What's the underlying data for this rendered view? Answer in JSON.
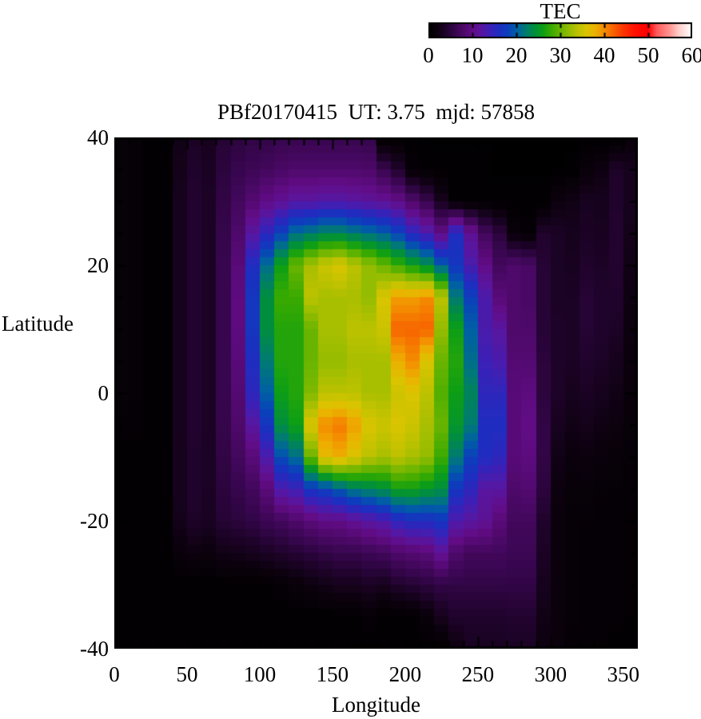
{
  "page": {
    "background": "#ffffff",
    "text_color": "#000000"
  },
  "colorbar": {
    "title": "TEC",
    "min": 0,
    "max": 60,
    "tick_values": [
      0,
      10,
      20,
      30,
      40,
      50,
      60
    ],
    "tick_labels": [
      "0",
      "10",
      "20",
      "30",
      "40",
      "50",
      "60"
    ]
  },
  "axes": {
    "xlabel": "Longitude",
    "ylabel": "Latitude",
    "x_range": [
      0,
      360
    ],
    "y_range": [
      -40,
      40
    ],
    "x_tick_values": [
      0,
      50,
      100,
      150,
      200,
      250,
      300,
      350
    ],
    "x_tick_labels": [
      "0",
      "50",
      "100",
      "150",
      "200",
      "250",
      "300",
      "350"
    ],
    "y_tick_values": [
      40,
      20,
      0,
      -20,
      -40
    ],
    "y_tick_labels": [
      "40",
      "20",
      "0",
      "-20",
      "-40"
    ],
    "x_minor_step": 10,
    "y_minor_step": 5
  },
  "chart_data": {
    "type": "heatmap",
    "title": "PBf20170415  UT: 3.75  mjd: 57858",
    "xlabel": "Longitude",
    "ylabel": "Latitude",
    "colorbar_label": "TEC",
    "value_range": [
      0,
      60
    ],
    "x_range": [
      0,
      360
    ],
    "y_range": [
      -40,
      40
    ],
    "lon_bin_deg": 10,
    "lat_rows": [
      40,
      35,
      30,
      25,
      20,
      15,
      10,
      5,
      0,
      -5,
      -10,
      -15,
      -20,
      -25,
      -30,
      -35,
      -40
    ],
    "lon_cols": [
      0,
      10,
      20,
      30,
      40,
      50,
      60,
      70,
      80,
      90,
      100,
      110,
      120,
      130,
      140,
      150,
      160,
      170,
      180,
      190,
      200,
      210,
      220,
      230,
      240,
      250,
      260,
      270,
      280,
      290,
      300,
      310,
      320,
      330,
      340,
      350
    ],
    "grid_cols": [
      [
        1.2,
        1.2,
        1.2,
        1.2,
        1.2,
        1.2,
        1.2,
        1.2,
        1.2,
        0.8,
        0.4,
        0.4,
        0.4,
        0.4,
        0.4,
        0.4,
        0.4
      ],
      [
        1.0,
        1.0,
        1.0,
        1.0,
        1.0,
        1.0,
        1.0,
        1.0,
        1.0,
        0.7,
        0.4,
        0.4,
        0.4,
        0.4,
        0.4,
        0.4,
        0.4
      ],
      [
        0.5,
        0.5,
        0.5,
        0.5,
        0.5,
        0.5,
        0.5,
        0.5,
        0.5,
        0.5,
        0.4,
        0.4,
        0.4,
        0.4,
        0.4,
        0.4,
        0.4
      ],
      [
        0.5,
        0.5,
        0.5,
        0.5,
        0.5,
        0.5,
        0.5,
        0.5,
        0.5,
        0.5,
        0.4,
        0.4,
        0.4,
        0.4,
        0.4,
        0.4,
        0.4
      ],
      [
        2.5,
        2.8,
        3.0,
        3.0,
        3.0,
        3.0,
        3.0,
        3.0,
        3.0,
        3.0,
        3.0,
        3.0,
        2.8,
        1.5,
        0.3,
        0.3,
        0.3
      ],
      [
        3.5,
        4.0,
        4.2,
        4.2,
        4.2,
        4.2,
        4.2,
        4.2,
        4.2,
        4.2,
        4.0,
        4.0,
        3.8,
        2.0,
        0.3,
        0.3,
        0.3
      ],
      [
        3.0,
        3.4,
        3.6,
        3.6,
        3.6,
        3.6,
        3.6,
        3.6,
        3.6,
        3.6,
        3.5,
        3.5,
        3.3,
        1.8,
        0.3,
        0.3,
        0.3
      ],
      [
        4.5,
        5.0,
        5.5,
        5.8,
        6.0,
        6.0,
        6.0,
        6.0,
        6.0,
        5.8,
        5.5,
        5.0,
        4.5,
        2.5,
        0.3,
        0.3,
        0.3
      ],
      [
        5.0,
        6.0,
        7.0,
        8.0,
        9.0,
        9.5,
        9.5,
        9.0,
        8.5,
        8.0,
        7.0,
        6.0,
        5.0,
        2.8,
        0.3,
        0.3,
        0.3
      ],
      [
        5.5,
        6.5,
        8.5,
        12,
        16,
        17,
        17,
        16,
        15,
        12,
        9.0,
        7.0,
        5.5,
        3.0,
        0.3,
        0.3,
        0.3
      ],
      [
        5.5,
        7.0,
        10,
        15,
        21,
        24,
        24,
        22,
        20,
        17,
        13,
        9.0,
        6.5,
        3.5,
        0.5,
        0.3,
        0.3
      ],
      [
        6.0,
        7.5,
        11,
        18,
        26,
        28,
        27,
        27,
        26,
        24,
        19,
        13,
        7.0,
        4.0,
        1.0,
        0.3,
        0.3
      ],
      [
        6.0,
        8.0,
        12,
        21,
        30,
        28,
        27,
        27,
        27,
        26,
        21,
        14,
        8.0,
        4.5,
        1.5,
        0.3,
        0.3
      ],
      [
        6.0,
        8.0,
        12,
        22,
        33,
        34,
        30,
        30,
        31,
        36,
        30,
        17,
        9.0,
        5.0,
        2.0,
        0.3,
        0.3
      ],
      [
        6.0,
        8.0,
        12.5,
        23,
        35,
        33,
        33,
        32,
        34,
        40,
        37,
        18,
        10,
        5.5,
        2.5,
        0.3,
        0.3
      ],
      [
        6.0,
        8.0,
        12.5,
        23,
        36,
        33,
        33,
        32,
        34,
        41,
        38,
        20,
        10,
        6.0,
        3.0,
        0.5,
        0.3
      ],
      [
        6.0,
        8.0,
        12,
        22,
        34,
        33,
        34,
        33,
        34,
        39,
        36,
        22,
        11,
        6.0,
        3.0,
        0.5,
        0.3
      ],
      [
        5.8,
        7.8,
        11.5,
        21,
        32,
        32,
        34,
        33,
        33,
        36,
        34,
        23,
        12,
        6.5,
        3.5,
        1.0,
        0.3
      ],
      [
        0.2,
        6.0,
        11,
        20,
        30,
        36,
        35,
        33,
        33,
        35,
        33,
        24,
        13,
        7.0,
        3.0,
        0.3,
        0.3
      ],
      [
        0.2,
        4.0,
        10,
        18,
        28,
        39,
        42,
        38,
        35,
        36,
        34,
        26,
        15,
        8.0,
        4.0,
        0.3,
        0.3
      ],
      [
        0.2,
        1.0,
        8.0,
        15,
        26,
        39,
        42,
        40,
        36,
        35,
        33,
        26,
        16,
        8.5,
        4.5,
        0.5,
        0.3
      ],
      [
        0.2,
        0.4,
        6.0,
        13,
        24,
        40,
        42,
        36,
        34,
        33,
        32,
        25,
        16,
        9.0,
        5.0,
        1.5,
        0.3
      ],
      [
        0.2,
        0.3,
        3.0,
        10,
        20,
        34,
        32,
        30,
        29,
        30,
        28,
        24,
        17,
        11,
        5.5,
        3.0,
        0.3
      ],
      [
        0.2,
        0.3,
        0.5,
        16,
        17,
        22,
        26,
        27,
        26,
        25,
        22,
        17,
        13,
        8.0,
        5.5,
        4.0,
        2.0
      ],
      [
        0.2,
        0.3,
        0.4,
        11,
        13,
        18,
        20,
        21,
        23,
        22,
        18,
        15,
        12,
        7.0,
        5.5,
        4.0,
        3.2
      ],
      [
        0.2,
        0.3,
        0.4,
        7.0,
        10,
        13,
        13,
        14,
        15,
        16,
        16,
        12,
        11,
        7.0,
        5.5,
        4.0,
        3.2
      ],
      [
        0.2,
        0.2,
        0.3,
        5.0,
        7.0,
        9.0,
        12,
        13,
        15,
        16,
        15,
        12,
        9.0,
        7.0,
        5.5,
        4.0,
        3.2
      ],
      [
        0.2,
        0.2,
        0.3,
        1.5,
        8.0,
        8.0,
        8.0,
        8.5,
        9.0,
        9.0,
        9.0,
        8.0,
        7.0,
        6.5,
        5.5,
        4.2,
        3.4
      ],
      [
        0.2,
        0.2,
        0.3,
        1.0,
        7.5,
        7.5,
        8.0,
        8.5,
        9.5,
        10,
        9.5,
        8.5,
        7.0,
        6.5,
        5.5,
        4.2,
        3.4
      ],
      [
        0.1,
        0.2,
        0.3,
        4.0,
        4.5,
        4.5,
        4.5,
        5.0,
        5.0,
        5.5,
        5.5,
        5.0,
        4.0,
        3.5,
        3.0,
        2.5,
        2.0
      ],
      [
        0.1,
        0.2,
        2.0,
        3.5,
        3.5,
        3.5,
        3.8,
        3.8,
        3.8,
        3.2,
        2.5,
        2.0,
        1.8,
        1.8,
        1.8,
        1.8,
        1.5
      ],
      [
        0.1,
        0.3,
        2.5,
        3.0,
        3.2,
        3.5,
        3.5,
        3.5,
        3.0,
        2.5,
        1.8,
        1.2,
        1.0,
        1.0,
        1.0,
        1.0,
        0.8
      ],
      [
        0.1,
        1.5,
        3.2,
        3.5,
        4.0,
        4.5,
        4.5,
        4.0,
        3.5,
        2.8,
        2.0,
        1.2,
        0.9,
        0.9,
        0.9,
        0.9,
        0.7
      ],
      [
        0.1,
        2.2,
        3.0,
        3.2,
        3.6,
        4.0,
        4.0,
        3.6,
        3.0,
        2.4,
        1.6,
        1.0,
        0.8,
        0.8,
        0.8,
        0.8,
        0.6
      ],
      [
        0.2,
        3.8,
        4.0,
        4.2,
        4.2,
        4.0,
        3.6,
        3.0,
        2.5,
        2.0,
        1.4,
        0.9,
        0.7,
        0.7,
        0.7,
        0.7,
        0.5
      ],
      [
        1.5,
        3.0,
        3.0,
        2.8,
        2.5,
        2.2,
        2.0,
        1.8,
        1.5,
        1.2,
        1.0,
        0.8,
        0.6,
        0.6,
        0.6,
        0.6,
        0.4
      ]
    ],
    "colormap_stops": [
      [
        0,
        0,
        0,
        0
      ],
      [
        2,
        12,
        1,
        14
      ],
      [
        4,
        32,
        3,
        44
      ],
      [
        6,
        55,
        6,
        78
      ],
      [
        8,
        78,
        9,
        106
      ],
      [
        10,
        98,
        12,
        134
      ],
      [
        12,
        88,
        22,
        160
      ],
      [
        14,
        60,
        32,
        182
      ],
      [
        16,
        30,
        45,
        192
      ],
      [
        18,
        12,
        62,
        188
      ],
      [
        20,
        0,
        95,
        165
      ],
      [
        22,
        0,
        122,
        115
      ],
      [
        24,
        0,
        142,
        62
      ],
      [
        26,
        12,
        158,
        22
      ],
      [
        28,
        58,
        170,
        0
      ],
      [
        30,
        105,
        180,
        0
      ],
      [
        32,
        148,
        188,
        0
      ],
      [
        34,
        188,
        194,
        0
      ],
      [
        36,
        218,
        196,
        0
      ],
      [
        38,
        236,
        176,
        0
      ],
      [
        40,
        244,
        140,
        0
      ],
      [
        42,
        247,
        100,
        0
      ],
      [
        44,
        250,
        60,
        0
      ],
      [
        46,
        254,
        30,
        0
      ],
      [
        48,
        255,
        10,
        0
      ],
      [
        50,
        255,
        0,
        0
      ],
      [
        52,
        255,
        90,
        90
      ],
      [
        55,
        255,
        150,
        145
      ],
      [
        57,
        255,
        205,
        200
      ],
      [
        60,
        255,
        255,
        255
      ]
    ],
    "legend_position": "top-right-colorbar",
    "grid_lines": false
  }
}
